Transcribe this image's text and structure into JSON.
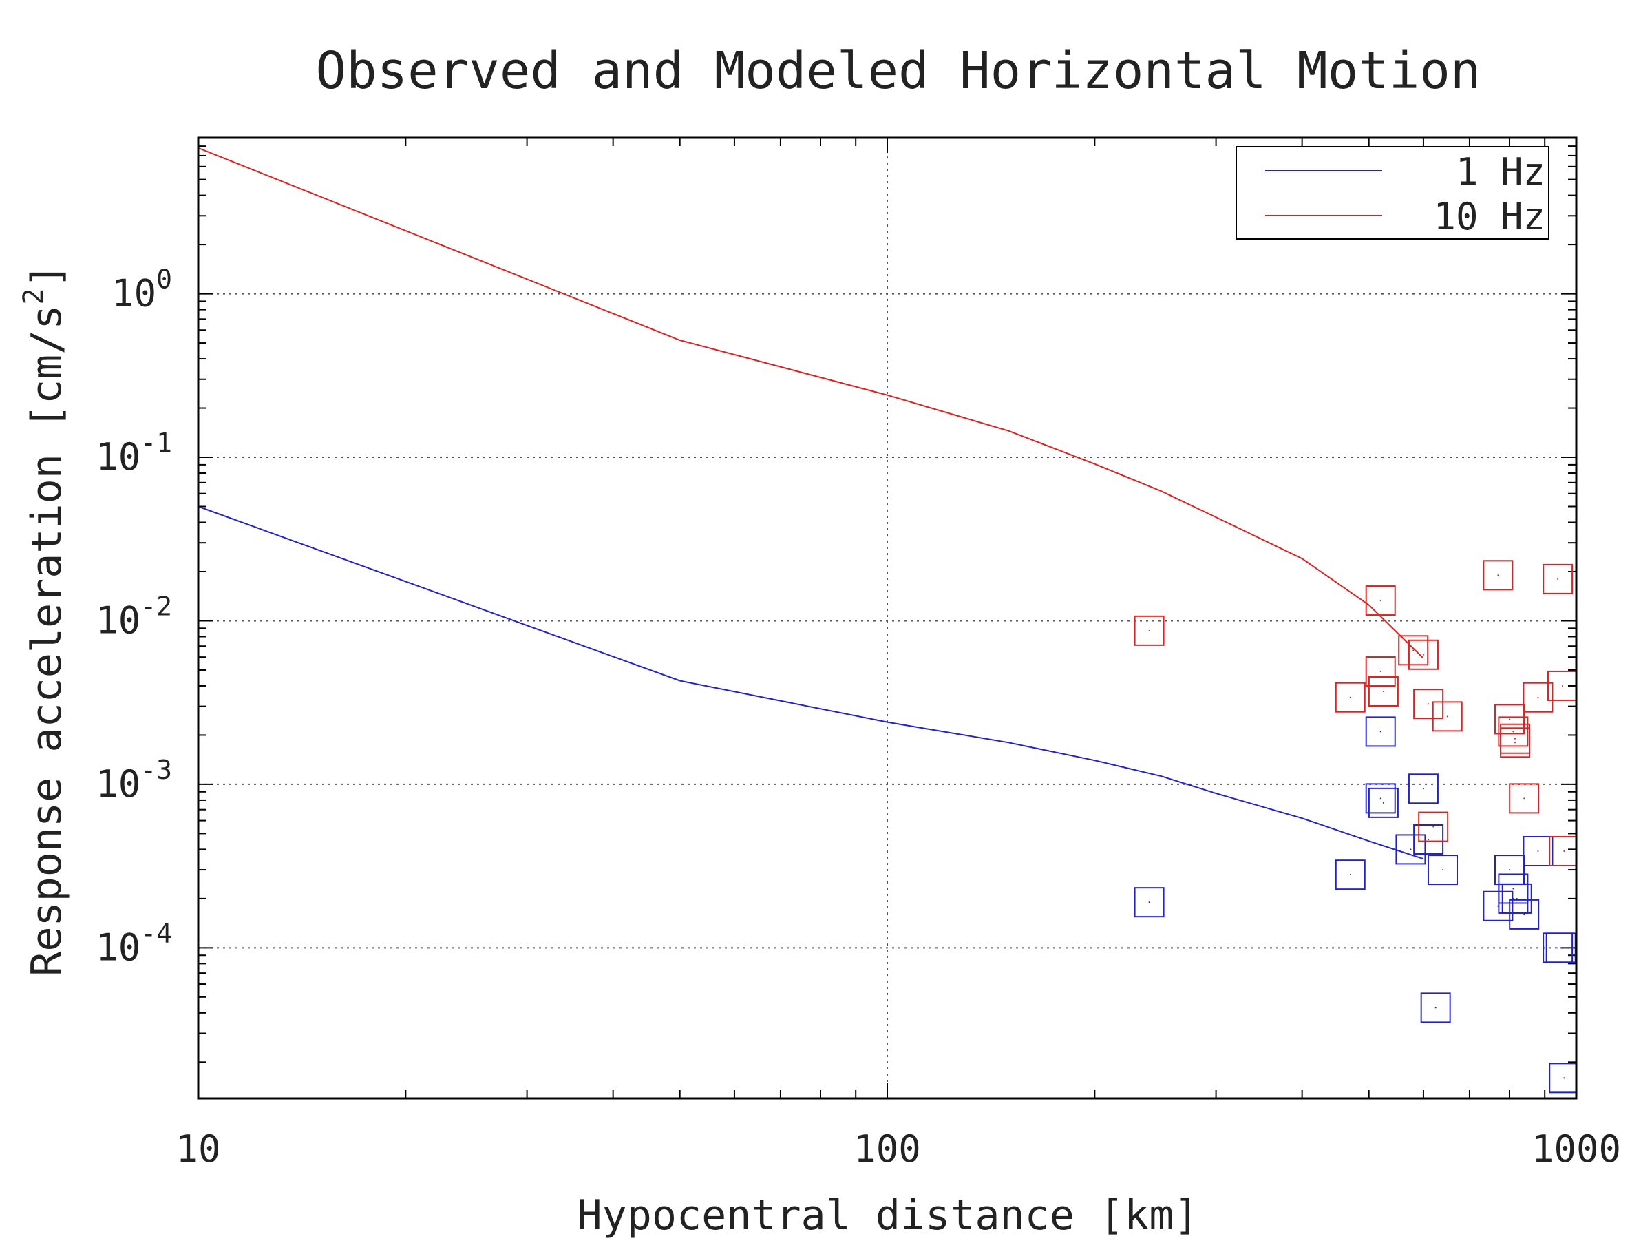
{
  "chart_data": {
    "type": "line",
    "title": "Observed and Modeled Horizontal Motion",
    "xlabel": "Hypocentral distance [km]",
    "ylabel": "Response acceleration [cm/s",
    "ylabel_sup": "2",
    "ylabel_end": "]",
    "x_scale": "log",
    "y_scale": "log",
    "xlim": [
      10,
      1000
    ],
    "ylim": [
      1.2e-05,
      9
    ],
    "grid": true,
    "legend_position": "top-right",
    "x_ticks": [
      {
        "value": 10,
        "label": "10"
      },
      {
        "value": 100,
        "label": "100"
      },
      {
        "value": 1000,
        "label": "1000"
      }
    ],
    "y_ticks": [
      {
        "value": 1,
        "base": "10",
        "exp": "0"
      },
      {
        "value": 0.1,
        "base": "10",
        "exp": "-1"
      },
      {
        "value": 0.01,
        "base": "10",
        "exp": "-2"
      },
      {
        "value": 0.001,
        "base": "10",
        "exp": "-3"
      },
      {
        "value": 0.0001,
        "base": "10",
        "exp": "-4"
      }
    ],
    "series": [
      {
        "name": "1 Hz",
        "color": "#2222cc",
        "line": {
          "x": [
            10,
            50,
            100,
            150,
            200,
            250,
            300,
            400,
            500,
            600
          ],
          "y": [
            0.05,
            0.0043,
            0.0024,
            0.0018,
            0.0014,
            0.00112,
            0.00088,
            0.00062,
            0.00045,
            0.00035
          ]
        },
        "observed": {
          "x": [
            240,
            470,
            520,
            520,
            525,
            575,
            600,
            610,
            625,
            640,
            770,
            800,
            810,
            810,
            820,
            840,
            880,
            940,
            950,
            960
          ],
          "y": [
            0.00019,
            0.00028,
            0.0021,
            0.00082,
            0.00077,
            0.0004,
            0.00094,
            0.00046,
            4.3e-05,
            0.0003,
            0.00018,
            0.0003,
            0.00023,
            0.0002,
            0.0002,
            0.00016,
            0.00039,
            0.0001,
            0.0001,
            1.6e-05
          ]
        }
      },
      {
        "name": "10 Hz",
        "color": "#dd2222",
        "line": {
          "x": [
            10,
            50,
            100,
            150,
            200,
            250,
            300,
            400,
            500,
            600
          ],
          "y": [
            7.8,
            0.52,
            0.24,
            0.145,
            0.091,
            0.062,
            0.043,
            0.024,
            0.0125,
            0.0059
          ]
        },
        "observed": {
          "x": [
            240,
            470,
            520,
            520,
            525,
            580,
            600,
            610,
            620,
            650,
            770,
            800,
            810,
            815,
            815,
            840,
            880,
            940,
            955,
            960
          ],
          "y": [
            0.0087,
            0.0034,
            0.0133,
            0.0049,
            0.0037,
            0.0066,
            0.0062,
            0.0031,
            0.00055,
            0.0026,
            0.019,
            0.0025,
            0.0021,
            0.0019,
            0.0018,
            0.00082,
            0.0034,
            0.018,
            0.004,
            0.00039
          ]
        }
      }
    ]
  }
}
